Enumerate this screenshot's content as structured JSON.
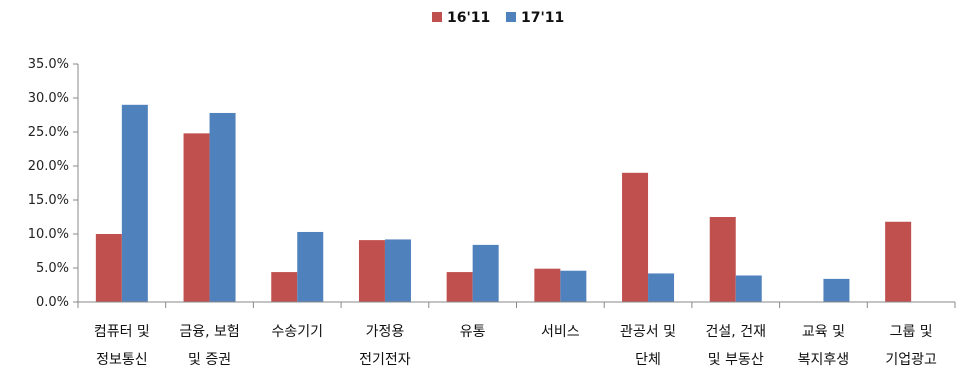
{
  "chart_data": {
    "type": "bar",
    "categories": [
      [
        "컴퓨터 및",
        "정보통신"
      ],
      [
        "금융, 보험",
        "및 증권"
      ],
      [
        "수송기기"
      ],
      [
        "가정용",
        "전기전자"
      ],
      [
        "유통"
      ],
      [
        "서비스"
      ],
      [
        "관공서 및",
        "단체"
      ],
      [
        "건설, 건재",
        "및 부동산"
      ],
      [
        "교육 및",
        "복지후생"
      ],
      [
        "그룹 및",
        "기업광고"
      ]
    ],
    "series": [
      {
        "name": "16'11",
        "color": "#c0504d",
        "values": [
          10.0,
          24.8,
          4.4,
          9.1,
          4.4,
          4.9,
          19.0,
          12.5,
          null,
          11.8
        ]
      },
      {
        "name": "17'11",
        "color": "#4f81bd",
        "values": [
          29.0,
          27.8,
          10.3,
          9.2,
          8.4,
          4.6,
          4.2,
          3.9,
          3.4,
          null
        ]
      }
    ],
    "y_ticks": [
      "0.0%",
      "5.0%",
      "10.0%",
      "15.0%",
      "20.0%",
      "25.0%",
      "30.0%",
      "35.0%"
    ],
    "ylim": [
      0,
      35
    ],
    "legend_position": "top-center",
    "grid": false
  }
}
